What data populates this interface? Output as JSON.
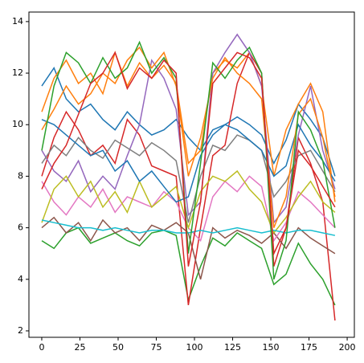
{
  "chart_data": {
    "type": "line",
    "x": [
      0,
      8,
      16,
      24,
      32,
      40,
      48,
      56,
      64,
      72,
      80,
      88,
      96,
      104,
      112,
      120,
      128,
      136,
      144,
      152,
      160,
      168,
      176,
      184,
      192
    ],
    "series": [
      {
        "color": "#1f77b4",
        "values": [
          11.5,
          12.2,
          11,
          10.5,
          10.8,
          10.2,
          9.8,
          10.5,
          10,
          9.6,
          9.8,
          10.2,
          9.5,
          9,
          9.8,
          10,
          10.3,
          10,
          9.6,
          8.5,
          9.4,
          10.8,
          10.2,
          9.5,
          8
        ]
      },
      {
        "color": "#ff7f0e",
        "values": [
          10.5,
          11.8,
          12.5,
          11.6,
          12,
          11.2,
          12.8,
          11.5,
          12.4,
          11.8,
          12.3,
          11.6,
          8.5,
          9,
          12,
          12.5,
          12.2,
          12.8,
          11.5,
          8,
          9.8,
          10.8,
          11.6,
          10.5,
          7
        ]
      },
      {
        "color": "#2ca02c",
        "values": [
          5.5,
          5.2,
          5.8,
          6,
          5.4,
          5.6,
          5.8,
          5.5,
          5.3,
          5.8,
          5.9,
          5.7,
          3.2,
          4.5,
          5.6,
          5.3,
          5.8,
          5.5,
          5.2,
          3.8,
          4.2,
          5.4,
          4.6,
          4,
          3
        ]
      },
      {
        "color": "#d62728",
        "values": [
          8,
          9.5,
          10.5,
          9.8,
          8.8,
          9.2,
          8.5,
          10.2,
          9.6,
          8.4,
          8.2,
          8,
          3,
          6,
          8.8,
          9.2,
          11.6,
          12.8,
          12,
          4.5,
          6,
          9.5,
          8.5,
          7,
          2.4
        ]
      },
      {
        "color": "#9467bd",
        "values": [
          9,
          8.2,
          7.8,
          8.6,
          7.4,
          8,
          7.5,
          8.8,
          10,
          12.5,
          11.8,
          10.6,
          6.5,
          7,
          12,
          12.8,
          13.5,
          12.8,
          11.5,
          6.2,
          6.8,
          9.6,
          11.5,
          9,
          7.5
        ]
      },
      {
        "color": "#8c564b",
        "values": [
          6,
          6.4,
          5.8,
          6.2,
          5.5,
          6.3,
          5.8,
          6,
          5.5,
          6.1,
          5.9,
          6.2,
          5.8,
          4,
          6,
          5.6,
          5.9,
          5.7,
          5.4,
          5.8,
          5.2,
          6,
          5.6,
          5.3,
          5
        ]
      },
      {
        "color": "#e377c2",
        "values": [
          7.8,
          7,
          6.5,
          7.2,
          6.8,
          7.5,
          6.6,
          7.2,
          7,
          6.8,
          7.4,
          7,
          6,
          5.5,
          7.2,
          7.8,
          7.4,
          8,
          7.6,
          5.5,
          6.2,
          7.4,
          7,
          6.5,
          6
        ]
      },
      {
        "color": "#7f7f7f",
        "values": [
          8.5,
          9.2,
          8.8,
          9.5,
          9,
          8.7,
          9.4,
          9.1,
          8.8,
          9.3,
          9,
          8.6,
          6.2,
          8,
          9.2,
          9,
          9.6,
          9.4,
          9,
          7.2,
          7.8,
          8.8,
          9,
          8.2,
          7.4
        ]
      },
      {
        "color": "#bcbd22",
        "values": [
          6.2,
          7.5,
          8,
          7.2,
          7.8,
          6.8,
          7.4,
          6.6,
          7.8,
          6.8,
          7.2,
          7.6,
          6,
          7.4,
          8,
          7.8,
          8.2,
          7.5,
          7,
          5.8,
          6.4,
          7.2,
          7.8,
          7,
          6.6
        ]
      },
      {
        "color": "#17becf",
        "values": [
          6.3,
          6.2,
          6.1,
          6,
          6,
          5.9,
          6,
          5.9,
          5.8,
          5.9,
          5.9,
          5.8,
          5.8,
          5.9,
          5.8,
          5.9,
          6,
          5.9,
          5.8,
          5.9,
          5.8,
          5.9,
          5.9,
          5.8,
          5.7
        ]
      },
      {
        "color": "#1f77b4",
        "values": [
          10.2,
          10,
          9.6,
          9.2,
          8.8,
          9,
          8.2,
          8.6,
          7.8,
          8.2,
          7.6,
          7,
          7.2,
          8.8,
          9.6,
          10,
          9.8,
          9.4,
          9,
          8,
          8.4,
          10,
          9.2,
          8.6,
          7.8
        ]
      },
      {
        "color": "#ff7f0e",
        "values": [
          9.8,
          10.6,
          11.5,
          10.8,
          11.2,
          12,
          11.6,
          12.5,
          13,
          12.2,
          12.8,
          11.5,
          8,
          9.5,
          11.8,
          12.6,
          12,
          11.6,
          11,
          6,
          7.2,
          10.4,
          11,
          9.5,
          7.2
        ]
      },
      {
        "color": "#2ca02c",
        "values": [
          9,
          11.5,
          12.8,
          12.4,
          11.6,
          12.6,
          11.8,
          12.2,
          13.2,
          12,
          12.6,
          11.8,
          5,
          8.5,
          12.4,
          11.8,
          12.5,
          13,
          12,
          4,
          5.5,
          10.5,
          9.8,
          8.6,
          6
        ]
      },
      {
        "color": "#d62728",
        "values": [
          7.5,
          8.5,
          9.2,
          10.4,
          11.6,
          12,
          12.8,
          11.4,
          12.2,
          11.8,
          12.5,
          12,
          4.5,
          7,
          11.6,
          12.2,
          12.8,
          12.6,
          11.8,
          5,
          6,
          9,
          8.4,
          7.6,
          6.8
        ]
      }
    ],
    "xlim": [
      -8.4,
      204.7
    ],
    "ylim": [
      1.75,
      14.37
    ],
    "xticks": [
      0,
      25,
      50,
      75,
      100,
      125,
      150,
      175,
      200
    ],
    "yticks": [
      2,
      4,
      6,
      8,
      10,
      12,
      14
    ]
  }
}
